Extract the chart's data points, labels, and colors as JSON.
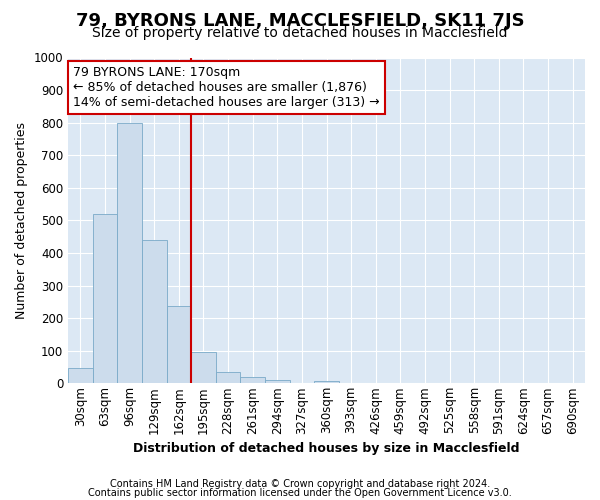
{
  "title": "79, BYRONS LANE, MACCLESFIELD, SK11 7JS",
  "subtitle": "Size of property relative to detached houses in Macclesfield",
  "xlabel": "Distribution of detached houses by size in Macclesfield",
  "ylabel": "Number of detached properties",
  "footnote1": "Contains HM Land Registry data © Crown copyright and database right 2024.",
  "footnote2": "Contains public sector information licensed under the Open Government Licence v3.0.",
  "bin_labels": [
    "30sqm",
    "63sqm",
    "96sqm",
    "129sqm",
    "162sqm",
    "195sqm",
    "228sqm",
    "261sqm",
    "294sqm",
    "327sqm",
    "360sqm",
    "393sqm",
    "426sqm",
    "459sqm",
    "492sqm",
    "525sqm",
    "558sqm",
    "591sqm",
    "624sqm",
    "657sqm",
    "690sqm"
  ],
  "bar_heights": [
    47,
    520,
    800,
    440,
    238,
    97,
    35,
    18,
    10,
    0,
    8,
    0,
    0,
    0,
    0,
    0,
    0,
    0,
    0,
    0,
    0
  ],
  "bar_color": "#ccdcec",
  "bar_edge_color": "#7aaac8",
  "vline_x": 4.5,
  "vline_color": "#cc0000",
  "annotation_line1": "79 BYRONS LANE: 170sqm",
  "annotation_line2": "← 85% of detached houses are smaller (1,876)",
  "annotation_line3": "14% of semi-detached houses are larger (313) →",
  "annotation_box_color": "#ffffff",
  "annotation_box_edge": "#cc0000",
  "ylim": [
    0,
    1000
  ],
  "yticks": [
    0,
    100,
    200,
    300,
    400,
    500,
    600,
    700,
    800,
    900,
    1000
  ],
  "figure_bg": "#ffffff",
  "plot_bg": "#dce8f4",
  "grid_color": "#ffffff",
  "title_fontsize": 13,
  "subtitle_fontsize": 10,
  "ylabel_fontsize": 9,
  "xlabel_fontsize": 9,
  "tick_fontsize": 8.5,
  "annotation_fontsize": 9,
  "footnote_fontsize": 7
}
